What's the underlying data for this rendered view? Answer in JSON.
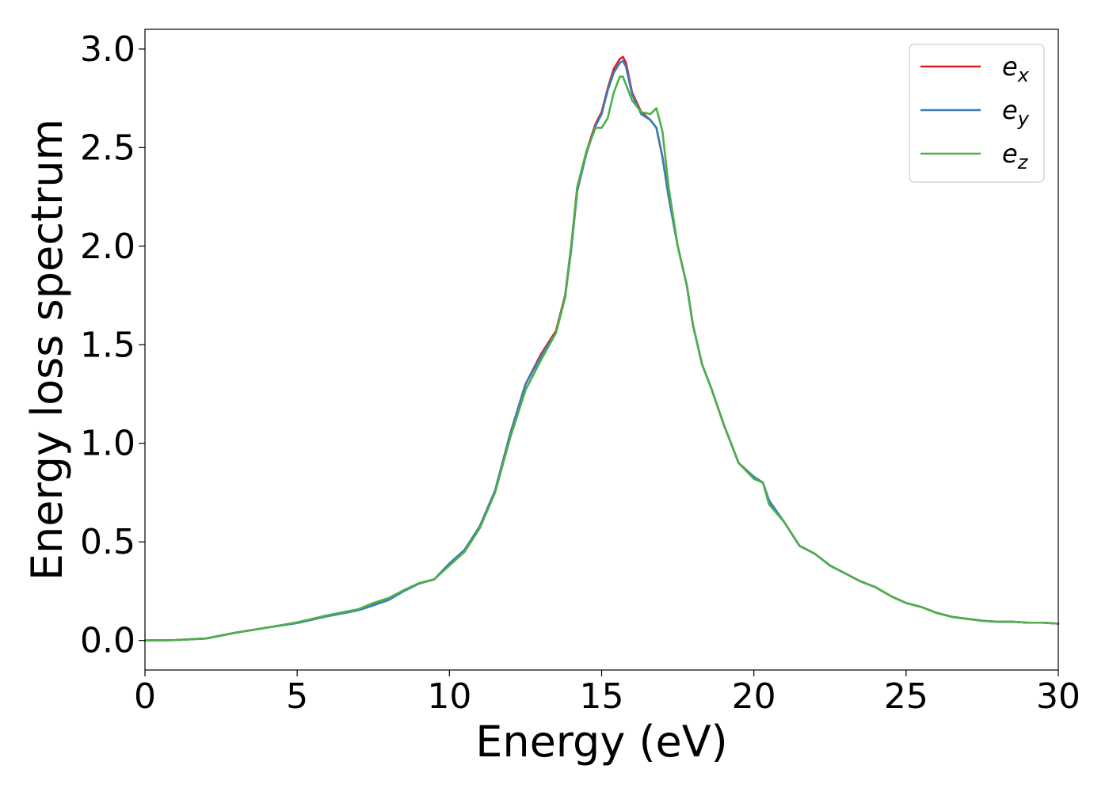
{
  "chart_data": {
    "type": "line",
    "xlabel": "Energy (eV)",
    "ylabel": "Energy loss spectrum",
    "xlim": [
      0,
      30
    ],
    "ylim": [
      -0.15,
      3.1
    ],
    "xticks": [
      0,
      5,
      10,
      15,
      20,
      25,
      30
    ],
    "xtick_labels": [
      "0",
      "5",
      "10",
      "15",
      "20",
      "25",
      "30"
    ],
    "yticks": [
      0.0,
      0.5,
      1.0,
      1.5,
      2.0,
      2.5,
      3.0
    ],
    "ytick_labels": [
      "0.0",
      "0.5",
      "1.0",
      "1.5",
      "2.0",
      "2.5",
      "3.0"
    ],
    "grid": false,
    "legend_position": "top-right",
    "series": [
      {
        "name": "e_x",
        "legend_base": "e",
        "legend_sub": "x",
        "color": "#e41a1c",
        "x": [
          0,
          1,
          2,
          2.5,
          3,
          4,
          5,
          6,
          7,
          7.5,
          8,
          8.5,
          9,
          9.5,
          10,
          10.5,
          11,
          11.5,
          12,
          12.5,
          13,
          13.5,
          13.8,
          14,
          14.2,
          14.5,
          14.8,
          15,
          15.2,
          15.4,
          15.6,
          15.7,
          15.8,
          16,
          16.3,
          16.6,
          16.8,
          17,
          17.2,
          17.5,
          17.8,
          18,
          18.3,
          18.6,
          19,
          19.5,
          20,
          20.3,
          20.5,
          21,
          21.5,
          22,
          22.5,
          23,
          23.5,
          24,
          24.5,
          25,
          25.5,
          26,
          26.5,
          27,
          27.5,
          28,
          28.5,
          29,
          29.5,
          30
        ],
        "y": [
          0.0,
          0.002,
          0.01,
          0.025,
          0.04,
          0.065,
          0.09,
          0.125,
          0.155,
          0.18,
          0.21,
          0.255,
          0.29,
          0.31,
          0.39,
          0.46,
          0.58,
          0.76,
          1.05,
          1.3,
          1.45,
          1.57,
          1.75,
          2.0,
          2.3,
          2.48,
          2.62,
          2.68,
          2.8,
          2.9,
          2.95,
          2.96,
          2.93,
          2.78,
          2.68,
          2.64,
          2.6,
          2.45,
          2.25,
          2.0,
          1.8,
          1.6,
          1.4,
          1.28,
          1.1,
          0.9,
          0.83,
          0.8,
          0.7,
          0.6,
          0.48,
          0.44,
          0.38,
          0.34,
          0.3,
          0.27,
          0.225,
          0.19,
          0.17,
          0.14,
          0.12,
          0.11,
          0.1,
          0.095,
          0.095,
          0.09,
          0.09,
          0.085
        ]
      },
      {
        "name": "e_y",
        "legend_base": "e",
        "legend_sub": "y",
        "color": "#377eb8",
        "x": [
          0,
          1,
          2,
          2.5,
          3,
          4,
          5,
          6,
          7,
          7.5,
          8,
          8.5,
          9,
          9.5,
          10,
          10.5,
          11,
          11.5,
          12,
          12.5,
          13,
          13.5,
          13.8,
          14,
          14.2,
          14.5,
          14.8,
          15,
          15.2,
          15.4,
          15.6,
          15.7,
          15.8,
          16,
          16.3,
          16.6,
          16.8,
          17,
          17.2,
          17.5,
          17.8,
          18,
          18.3,
          18.6,
          19,
          19.5,
          20,
          20.3,
          20.5,
          21,
          21.5,
          22,
          22.5,
          23,
          23.5,
          24,
          24.5,
          25,
          25.5,
          26,
          26.5,
          27,
          27.5,
          28,
          28.5,
          29,
          29.5,
          30
        ],
        "y": [
          0.0,
          0.002,
          0.01,
          0.025,
          0.04,
          0.065,
          0.088,
          0.123,
          0.153,
          0.178,
          0.205,
          0.25,
          0.288,
          0.31,
          0.39,
          0.46,
          0.58,
          0.76,
          1.05,
          1.3,
          1.44,
          1.56,
          1.74,
          1.98,
          2.28,
          2.47,
          2.61,
          2.67,
          2.79,
          2.88,
          2.93,
          2.94,
          2.91,
          2.77,
          2.67,
          2.64,
          2.6,
          2.45,
          2.25,
          2.0,
          1.8,
          1.6,
          1.4,
          1.28,
          1.1,
          0.9,
          0.83,
          0.8,
          0.71,
          0.6,
          0.48,
          0.44,
          0.38,
          0.34,
          0.3,
          0.27,
          0.225,
          0.19,
          0.17,
          0.14,
          0.12,
          0.11,
          0.1,
          0.095,
          0.095,
          0.09,
          0.09,
          0.085
        ]
      },
      {
        "name": "e_z",
        "legend_base": "e",
        "legend_sub": "z",
        "color": "#4daf4a",
        "x": [
          0,
          1,
          2,
          2.5,
          3,
          4,
          5,
          6,
          7,
          7.5,
          8,
          8.5,
          9,
          9.5,
          10,
          10.5,
          11,
          11.5,
          12,
          12.5,
          13,
          13.5,
          13.8,
          14,
          14.2,
          14.5,
          14.8,
          15,
          15.2,
          15.4,
          15.6,
          15.7,
          15.8,
          16,
          16.3,
          16.6,
          16.8,
          17,
          17.2,
          17.5,
          17.8,
          18,
          18.3,
          18.6,
          19,
          19.5,
          20,
          20.3,
          20.5,
          21,
          21.5,
          22,
          22.5,
          23,
          23.5,
          24,
          24.5,
          25,
          25.5,
          26,
          26.5,
          27,
          27.5,
          28,
          28.5,
          29,
          29.5,
          30
        ],
        "y": [
          0.0,
          0.002,
          0.01,
          0.025,
          0.04,
          0.065,
          0.092,
          0.128,
          0.158,
          0.19,
          0.215,
          0.255,
          0.29,
          0.31,
          0.38,
          0.45,
          0.57,
          0.75,
          1.03,
          1.27,
          1.42,
          1.56,
          1.74,
          2.0,
          2.3,
          2.48,
          2.6,
          2.6,
          2.65,
          2.78,
          2.86,
          2.86,
          2.82,
          2.74,
          2.68,
          2.67,
          2.7,
          2.58,
          2.3,
          2.0,
          1.8,
          1.6,
          1.4,
          1.28,
          1.1,
          0.9,
          0.82,
          0.8,
          0.69,
          0.6,
          0.48,
          0.44,
          0.38,
          0.34,
          0.3,
          0.27,
          0.225,
          0.19,
          0.17,
          0.14,
          0.12,
          0.11,
          0.1,
          0.095,
          0.095,
          0.09,
          0.09,
          0.085
        ]
      }
    ]
  }
}
